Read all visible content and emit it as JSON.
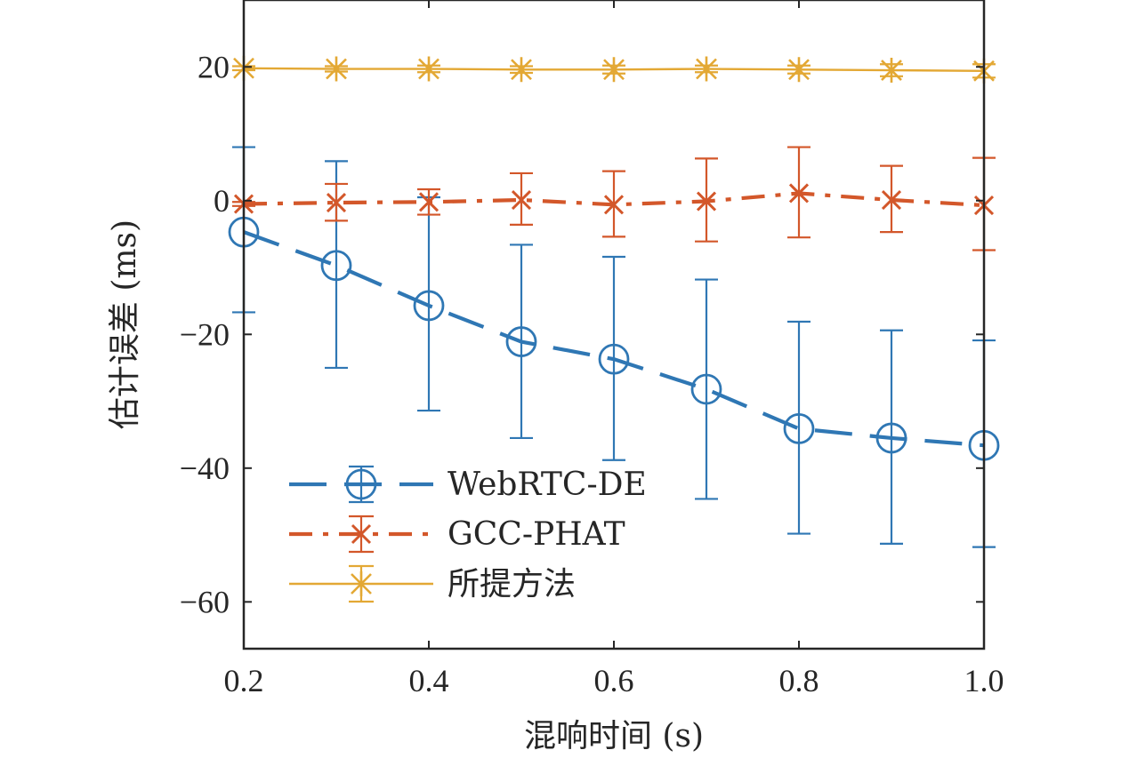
{
  "chart_data": {
    "type": "line",
    "xlabel": "混响时间 (s)",
    "ylabel": "估计误差 (ms)",
    "xlim": [
      0.2,
      1.0
    ],
    "ylim": [
      -67,
      30
    ],
    "xticks": [
      0.2,
      0.4,
      0.6,
      0.8,
      1.0
    ],
    "xtick_labels": [
      "0.2",
      "0.4",
      "0.6",
      "0.8",
      "1.0"
    ],
    "yticks": [
      20,
      0,
      -20,
      -40,
      -60
    ],
    "ytick_labels": [
      "20",
      "0",
      "−20",
      "−40",
      "−60"
    ],
    "grid": false,
    "legend_position": "bottom-left",
    "x": [
      0.2,
      0.3,
      0.4,
      0.5,
      0.6,
      0.7,
      0.8,
      0.9,
      1.0
    ],
    "series": [
      {
        "name": "WebRTC-DE",
        "color": "#2f77b4",
        "line_style": "dashed",
        "marker": "circle",
        "values": [
          -4.7,
          -9.7,
          -15.7,
          -21.1,
          -23.7,
          -28.2,
          -34.1,
          -35.5,
          -36.6
        ],
        "error_low": [
          -16.7,
          -25.0,
          -31.4,
          -35.5,
          -38.8,
          -44.6,
          -49.8,
          -51.3,
          -51.8
        ],
        "error_high": [
          8.0,
          5.9,
          0.5,
          -6.6,
          -8.4,
          -11.8,
          -18.1,
          -19.4,
          -20.9
        ]
      },
      {
        "name": "GCC-PHAT",
        "color": "#d3572a",
        "line_style": "dashdot",
        "marker": "x",
        "values": [
          -0.5,
          -0.3,
          -0.2,
          0.1,
          -0.6,
          -0.1,
          1.1,
          0.1,
          -0.7
        ],
        "error_low": [
          -0.8,
          -3.0,
          -2.1,
          -3.6,
          -5.4,
          -6.1,
          -5.5,
          -4.7,
          -7.4
        ],
        "error_high": [
          -0.2,
          2.5,
          1.7,
          4.1,
          4.4,
          6.3,
          8.0,
          5.2,
          6.4
        ]
      },
      {
        "name": "所提方法",
        "color": "#e3a834",
        "line_style": "solid",
        "marker": "star",
        "values": [
          19.8,
          19.7,
          19.7,
          19.6,
          19.6,
          19.7,
          19.6,
          19.5,
          19.4
        ],
        "error_low": [
          19.5,
          19.3,
          19.2,
          19.1,
          19.0,
          19.2,
          19.0,
          18.6,
          18.4
        ],
        "error_high": [
          20.1,
          20.1,
          20.2,
          20.1,
          20.2,
          20.2,
          20.2,
          20.4,
          20.4
        ]
      }
    ]
  }
}
